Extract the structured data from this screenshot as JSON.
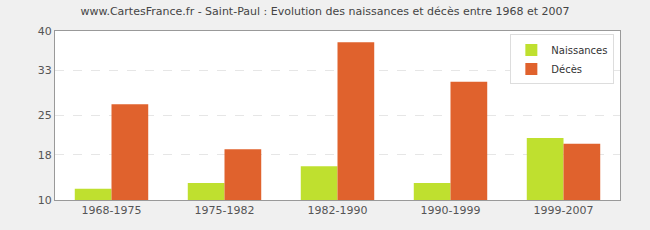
{
  "chart_data": {
    "type": "bar",
    "title": "www.CartesFrance.fr - Saint-Paul : Evolution des naissances et décès entre 1968 et 2007",
    "categories": [
      "1968-1975",
      "1975-1982",
      "1982-1990",
      "1990-1999",
      "1999-2007"
    ],
    "series": [
      {
        "name": "Naissances",
        "color": "#bfe02f",
        "values": [
          12,
          13,
          16,
          13,
          21
        ]
      },
      {
        "name": "Décès",
        "color": "#e0622d",
        "values": [
          27,
          19,
          38,
          31,
          20
        ]
      }
    ],
    "ylim": [
      10,
      40
    ],
    "yticks": [
      10,
      18,
      25,
      33,
      40
    ],
    "grid": true,
    "legend": "top-right"
  }
}
